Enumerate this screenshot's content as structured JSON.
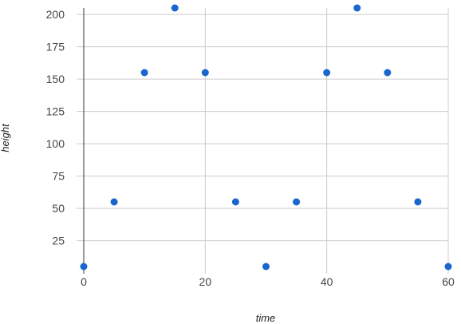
{
  "chart_data": {
    "type": "scatter",
    "title": "",
    "xlabel": "time",
    "ylabel": "height",
    "xlim": [
      0,
      60
    ],
    "ylim": [
      5,
      205
    ],
    "x_ticks": [
      0,
      20,
      40,
      60
    ],
    "y_ticks": [
      25,
      50,
      75,
      100,
      125,
      150,
      175,
      200
    ],
    "grid": true,
    "legend": "none",
    "marker_color": "#1a66cc",
    "series": [
      {
        "x": [
          0,
          5,
          10,
          15,
          20,
          25,
          30,
          35,
          40,
          45,
          50,
          55,
          60
        ],
        "y": [
          5,
          55,
          155,
          205,
          155,
          55,
          5,
          55,
          155,
          205,
          155,
          55,
          5
        ]
      }
    ]
  }
}
